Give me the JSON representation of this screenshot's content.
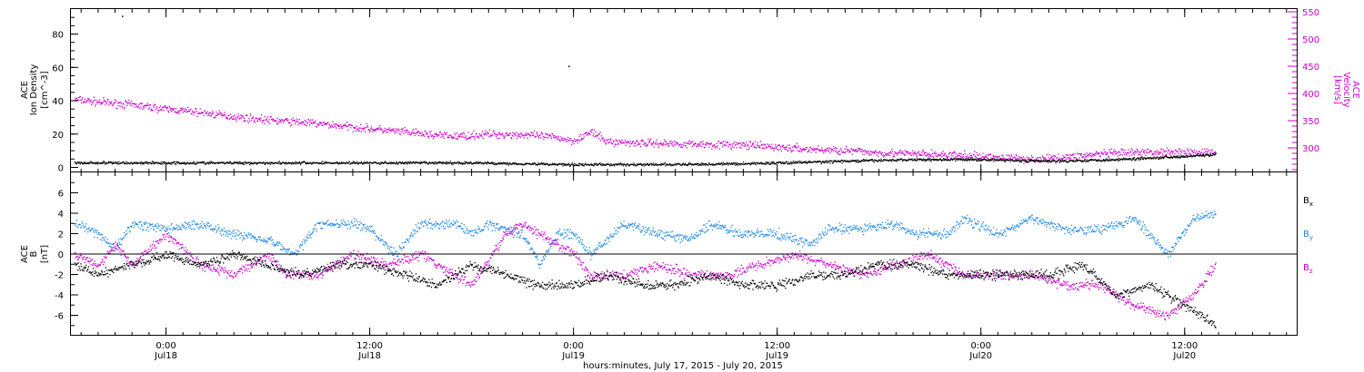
{
  "colors": {
    "black": "#000000",
    "magenta": "#cc00cc",
    "blue": "#1e88e5"
  },
  "x_axis": {
    "title": "hours:minutes, July 17, 2015 - July 20, 2015",
    "ticks": [
      {
        "time": "0:00",
        "date": "Jul18",
        "hour": 24
      },
      {
        "time": "12:00",
        "date": "Jul18",
        "hour": 36
      },
      {
        "time": "0:00",
        "date": "Jul19",
        "hour": 48
      },
      {
        "time": "12:00",
        "date": "Jul19",
        "hour": 60
      },
      {
        "time": "0:00",
        "date": "Jul20",
        "hour": 72
      },
      {
        "time": "12:00",
        "date": "Jul20",
        "hour": 84
      }
    ],
    "range_hours": [
      18.4,
      90.6
    ]
  },
  "chart_data": [
    {
      "type": "scatter",
      "panel": "top",
      "y_left": {
        "label_lines": [
          "ACE",
          "Ion Density",
          "[cm^-3]"
        ],
        "ticks": [
          "0",
          "20",
          "40",
          "60",
          "80"
        ],
        "range": [
          -3,
          95
        ]
      },
      "y_right": {
        "label_lines": [
          "ACE",
          "Velocity",
          "[km/s]"
        ],
        "ticks": [
          "300",
          "350",
          "400",
          "450",
          "500",
          "550"
        ],
        "range": [
          255,
          555
        ]
      },
      "series": [
        {
          "color": "magenta",
          "axis": "right",
          "points": [
            [
              18.6,
              390
            ],
            [
              20,
              385
            ],
            [
              22,
              380
            ],
            [
              24,
              372
            ],
            [
              26,
              366
            ],
            [
              28,
              358
            ],
            [
              30,
              352
            ],
            [
              32,
              348
            ],
            [
              34,
              342
            ],
            [
              36,
              336
            ],
            [
              38,
              330
            ],
            [
              39.6,
              325
            ],
            [
              41,
              322
            ],
            [
              43,
              326
            ],
            [
              45,
              325
            ],
            [
              47,
              320
            ],
            [
              48,
              314
            ],
            [
              49,
              330
            ],
            [
              50,
              312
            ],
            [
              52,
              310
            ],
            [
              55,
              308
            ],
            [
              58,
              306
            ],
            [
              60,
              302
            ],
            [
              62,
              298
            ],
            [
              64,
              296
            ],
            [
              66,
              292
            ],
            [
              68,
              290
            ],
            [
              70,
              288
            ],
            [
              72,
              285
            ],
            [
              74,
              282
            ],
            [
              75.5,
              280
            ],
            [
              77,
              284
            ],
            [
              79,
              290
            ],
            [
              81,
              292
            ],
            [
              83,
              294
            ],
            [
              85.8,
              292
            ]
          ]
        },
        {
          "color": "black",
          "axis": "left",
          "points": [
            [
              18.6,
              3
            ],
            [
              24,
              3
            ],
            [
              30,
              3
            ],
            [
              36,
              3
            ],
            [
              42,
              3
            ],
            [
              48,
              2
            ],
            [
              54,
              2
            ],
            [
              58,
              2.5
            ],
            [
              60,
              3
            ],
            [
              64,
              4
            ],
            [
              68,
              5
            ],
            [
              72,
              5
            ],
            [
              76,
              4
            ],
            [
              80,
              5
            ],
            [
              84,
              7
            ],
            [
              85.8,
              8
            ]
          ]
        }
      ],
      "outliers": [
        [
          21.4,
          91
        ],
        [
          47.7,
          61
        ]
      ]
    },
    {
      "type": "scatter",
      "panel": "bottom",
      "y_axis": {
        "label_lines": [
          "ACE",
          "B",
          "[nT]"
        ],
        "ticks": [
          "-6",
          "-4",
          "-2",
          "0",
          "2",
          "4",
          "6"
        ],
        "range": [
          -8,
          8
        ]
      },
      "legend": {
        "placement": "right",
        "entries": [
          {
            "label": "B",
            "sub": "x",
            "color": "black"
          },
          {
            "label": "B",
            "sub": "y",
            "color": "blue"
          },
          {
            "label": "B",
            "sub": "z",
            "color": "magenta"
          }
        ]
      },
      "series": [
        {
          "color": "blue",
          "points": [
            [
              18.6,
              3
            ],
            [
              20,
              2
            ],
            [
              21,
              0.5
            ],
            [
              22,
              3
            ],
            [
              24,
              2.5
            ],
            [
              26,
              3
            ],
            [
              28,
              2
            ],
            [
              30,
              1.5
            ],
            [
              31.5,
              0
            ],
            [
              33,
              3
            ],
            [
              35,
              3
            ],
            [
              36,
              2.5
            ],
            [
              37.5,
              0
            ],
            [
              39,
              3
            ],
            [
              41,
              3
            ],
            [
              42,
              2
            ],
            [
              43,
              3
            ],
            [
              45,
              2
            ],
            [
              46,
              -1
            ],
            [
              47,
              2
            ],
            [
              48,
              2
            ],
            [
              49,
              0
            ],
            [
              51,
              3
            ],
            [
              53,
              2
            ],
            [
              55,
              1.5
            ],
            [
              56,
              3
            ],
            [
              58,
              2
            ],
            [
              60,
              2
            ],
            [
              62,
              1
            ],
            [
              63,
              2.5
            ],
            [
              65,
              2.5
            ],
            [
              67,
              3
            ],
            [
              68,
              2
            ],
            [
              70,
              2
            ],
            [
              71,
              3.5
            ],
            [
              73,
              2
            ],
            [
              75,
              3.5
            ],
            [
              77,
              2.5
            ],
            [
              79,
              2.5
            ],
            [
              81,
              3.5
            ],
            [
              83,
              0
            ],
            [
              84.5,
              3.5
            ],
            [
              85.8,
              4
            ]
          ]
        },
        {
          "color": "magenta",
          "points": [
            [
              18.6,
              0
            ],
            [
              20,
              -1
            ],
            [
              21,
              1
            ],
            [
              22,
              -1
            ],
            [
              24,
              2
            ],
            [
              26,
              -1
            ],
            [
              28,
              -2
            ],
            [
              30,
              0
            ],
            [
              31,
              -2
            ],
            [
              33,
              -2
            ],
            [
              35,
              0
            ],
            [
              37,
              -1
            ],
            [
              39,
              0
            ],
            [
              41,
              -2
            ],
            [
              42,
              -3
            ],
            [
              44,
              2
            ],
            [
              45,
              3
            ],
            [
              46,
              2
            ],
            [
              47,
              1
            ],
            [
              48,
              0
            ],
            [
              49,
              -2
            ],
            [
              51,
              -2
            ],
            [
              53,
              -1
            ],
            [
              55,
              -2
            ],
            [
              57,
              -2
            ],
            [
              59,
              -1
            ],
            [
              61,
              0
            ],
            [
              63,
              -1
            ],
            [
              65,
              -2
            ],
            [
              67,
              -1
            ],
            [
              69,
              0
            ],
            [
              71,
              -2
            ],
            [
              73,
              -2
            ],
            [
              75,
              -2
            ],
            [
              77,
              -3
            ],
            [
              79,
              -3
            ],
            [
              81,
              -5
            ],
            [
              83,
              -6
            ],
            [
              84.5,
              -4
            ],
            [
              85.8,
              -1
            ]
          ]
        },
        {
          "color": "black",
          "points": [
            [
              18.6,
              -1
            ],
            [
              20,
              -2
            ],
            [
              22,
              -1
            ],
            [
              24,
              0
            ],
            [
              26,
              -1
            ],
            [
              28,
              0
            ],
            [
              30,
              -1
            ],
            [
              32,
              -2
            ],
            [
              34,
              -1
            ],
            [
              36,
              -1
            ],
            [
              38,
              -2
            ],
            [
              40,
              -3
            ],
            [
              42,
              -1
            ],
            [
              44,
              -2
            ],
            [
              46,
              -3
            ],
            [
              48,
              -3
            ],
            [
              50,
              -2
            ],
            [
              52,
              -3
            ],
            [
              54,
              -3
            ],
            [
              56,
              -2
            ],
            [
              58,
              -3
            ],
            [
              60,
              -3
            ],
            [
              62,
              -2
            ],
            [
              64,
              -2
            ],
            [
              66,
              -1
            ],
            [
              68,
              -1
            ],
            [
              70,
              -2
            ],
            [
              72,
              -2
            ],
            [
              74,
              -2
            ],
            [
              76,
              -2
            ],
            [
              78,
              -1
            ],
            [
              80,
              -4
            ],
            [
              82,
              -3
            ],
            [
              84,
              -5
            ],
            [
              85.8,
              -7
            ]
          ]
        }
      ]
    }
  ]
}
